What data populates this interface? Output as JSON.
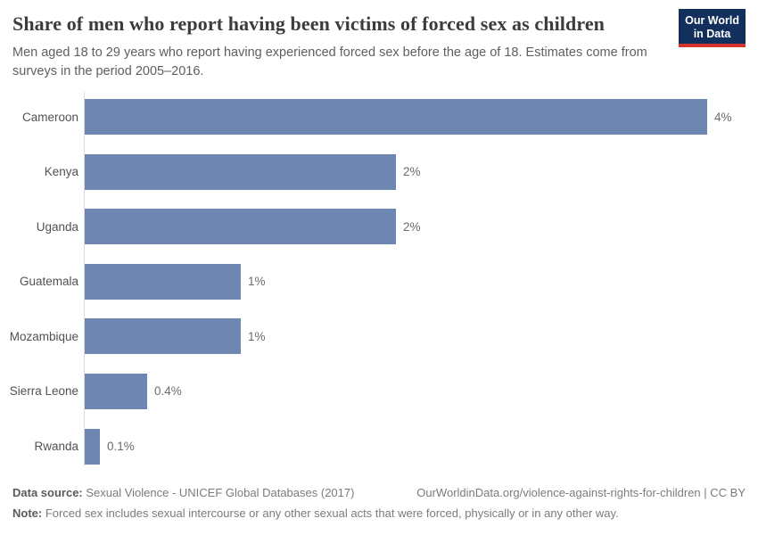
{
  "branding": {
    "logo_line1": "Our World",
    "logo_line2": "in Data",
    "logo_bg_color": "#12305b",
    "logo_accent_color": "#d4342c"
  },
  "chart_data": {
    "type": "bar",
    "orientation": "horizontal",
    "title": "Share of men who report having been victims of forced sex as children",
    "subtitle": "Men aged 18 to 29 years who report having experienced forced sex before the age of 18. Estimates come from surveys in the period 2005–2016.",
    "categories": [
      "Cameroon",
      "Kenya",
      "Uganda",
      "Guatemala",
      "Mozambique",
      "Sierra Leone",
      "Rwanda"
    ],
    "values": [
      4,
      2,
      2,
      1,
      1,
      0.4,
      0.1
    ],
    "value_labels": [
      "4%",
      "2%",
      "2%",
      "1%",
      "1%",
      "0.4%",
      "0.1%"
    ],
    "unit": "%",
    "xlim": [
      0,
      4
    ],
    "grid": false,
    "legend": "none",
    "bar_color": "#6e87b2",
    "axis_line_color": "#dcdcdc"
  },
  "footer": {
    "data_source_label": "Data source:",
    "data_source_value": " Sexual Violence - UNICEF Global Databases (2017)",
    "attribution": "OurWorldinData.org/violence-against-rights-for-children | CC BY",
    "note_label": "Note:",
    "note_value": " Forced sex includes sexual intercourse or any other sexual acts that were forced, physically or in any other way."
  }
}
